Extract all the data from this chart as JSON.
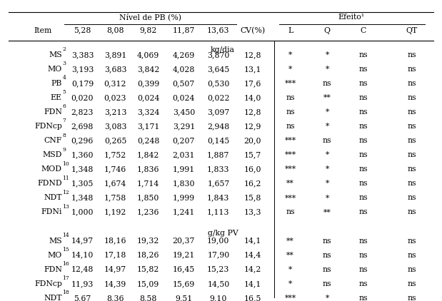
{
  "group_header_nivel": "Nível de PB (%)",
  "group_header_efeito": "Efeito¹",
  "col_headers_nivel": [
    "5,28",
    "8,08",
    "9,82",
    "11,87",
    "13,63"
  ],
  "col_header_cv": "CV(%)",
  "col_headers_efeito": [
    "L",
    "Q",
    "C",
    "QT"
  ],
  "unit_row1": "kg/dia",
  "unit_row2": "g/kg PV",
  "rows_kg": [
    {
      "item": "MS",
      "sup": "2",
      "vals": [
        "3,383",
        "3,891",
        "4,069",
        "4,269",
        "3,870"
      ],
      "cv": "12,8",
      "efts": [
        "*",
        "*",
        "ns",
        "ns"
      ]
    },
    {
      "item": "MO",
      "sup": "3",
      "vals": [
        "3,193",
        "3,683",
        "3,842",
        "4,028",
        "3,645"
      ],
      "cv": "13,1",
      "efts": [
        "*",
        "*",
        "ns",
        "ns"
      ]
    },
    {
      "item": "PB",
      "sup": "4",
      "vals": [
        "0,179",
        "0,312",
        "0,399",
        "0,507",
        "0,530"
      ],
      "cv": "17,6",
      "efts": [
        "***",
        "ns",
        "ns",
        "ns"
      ]
    },
    {
      "item": "EE",
      "sup": "5",
      "vals": [
        "0,020",
        "0,023",
        "0,024",
        "0,024",
        "0,022"
      ],
      "cv": "14,0",
      "efts": [
        "ns",
        "**",
        "ns",
        "ns"
      ]
    },
    {
      "item": "FDN",
      "sup": "6",
      "vals": [
        "2,823",
        "3,213",
        "3,324",
        "3,450",
        "3,097"
      ],
      "cv": "12,8",
      "efts": [
        "ns",
        "*",
        "ns",
        "ns"
      ]
    },
    {
      "item": "FDNcp",
      "sup": "7",
      "vals": [
        "2,698",
        "3,083",
        "3,171",
        "3,291",
        "2,948"
      ],
      "cv": "12,9",
      "efts": [
        "ns",
        "*",
        "ns",
        "ns"
      ]
    },
    {
      "item": "CNF",
      "sup": "8",
      "vals": [
        "0,296",
        "0,265",
        "0,248",
        "0,207",
        "0,145"
      ],
      "cv": "20,0",
      "efts": [
        "***",
        "ns",
        "ns",
        "ns"
      ]
    },
    {
      "item": "MSD",
      "sup": "9",
      "vals": [
        "1,360",
        "1,752",
        "1,842",
        "2,031",
        "1,887"
      ],
      "cv": "15,7",
      "efts": [
        "***",
        "*",
        "ns",
        "ns"
      ]
    },
    {
      "item": "MOD",
      "sup": "10",
      "vals": [
        "1,348",
        "1,746",
        "1,836",
        "1,991",
        "1,833"
      ],
      "cv": "16,0",
      "efts": [
        "***",
        "*",
        "ns",
        "ns"
      ]
    },
    {
      "item": "FDND",
      "sup": "11",
      "vals": [
        "1,305",
        "1,674",
        "1,714",
        "1,830",
        "1,657"
      ],
      "cv": "16,2",
      "efts": [
        "**",
        "*",
        "ns",
        "ns"
      ]
    },
    {
      "item": "NDT",
      "sup": "12",
      "vals": [
        "1,348",
        "1,758",
        "1,850",
        "1,999",
        "1,843"
      ],
      "cv": "15,8",
      "efts": [
        "***",
        "*",
        "ns",
        "ns"
      ]
    },
    {
      "item": "FDNi",
      "sup": "13",
      "vals": [
        "1,000",
        "1,192",
        "1,236",
        "1,241",
        "1,113"
      ],
      "cv": "13,3",
      "efts": [
        "ns",
        "**",
        "ns",
        "ns"
      ]
    }
  ],
  "rows_gkg": [
    {
      "item": "MS",
      "sup": "14",
      "vals": [
        "14,97",
        "18,16",
        "19,32",
        "20,37",
        "19,00"
      ],
      "cv": "14,1",
      "efts": [
        "**",
        "ns",
        "ns",
        "ns"
      ]
    },
    {
      "item": "MO",
      "sup": "15",
      "vals": [
        "14,10",
        "17,18",
        "18,26",
        "19,21",
        "17,90"
      ],
      "cv": "14,4",
      "efts": [
        "**",
        "ns",
        "ns",
        "ns"
      ]
    },
    {
      "item": "FDN",
      "sup": "16",
      "vals": [
        "12,48",
        "14,97",
        "15,82",
        "16,45",
        "15,23"
      ],
      "cv": "14,2",
      "efts": [
        "*",
        "ns",
        "ns",
        "ns"
      ]
    },
    {
      "item": "FDNcp",
      "sup": "17",
      "vals": [
        "11,93",
        "14,39",
        "15,09",
        "15,69",
        "14,50"
      ],
      "cv": "14,1",
      "efts": [
        "*",
        "ns",
        "ns",
        "ns"
      ]
    },
    {
      "item": "NDT",
      "sup": "18",
      "vals": [
        "5,67",
        "8,36",
        "8,58",
        "9,51",
        "9,10"
      ],
      "cv": "16,5",
      "efts": [
        "***",
        "*",
        "ns",
        "ns"
      ]
    }
  ],
  "bg_color": "#ffffff",
  "text_color": "#000000",
  "line_color": "#000000",
  "font_size": 7.8,
  "sup_font_size": 5.5
}
